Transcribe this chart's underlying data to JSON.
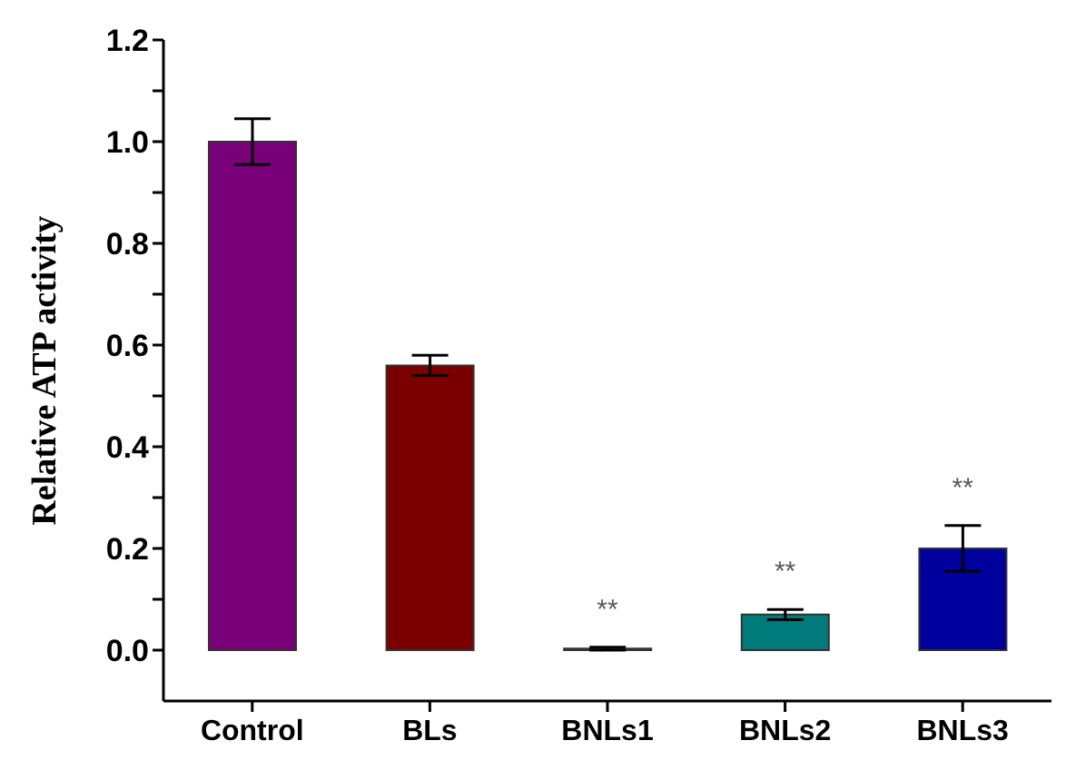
{
  "chart_data": {
    "type": "bar",
    "ylabel": "Relative ATP activity",
    "categories": [
      "Control",
      "BLs",
      "BNLs1",
      "BNLs2",
      "BNLs3"
    ],
    "values": [
      1.0,
      0.56,
      0.003,
      0.07,
      0.2
    ],
    "colors": [
      "#7a007a",
      "#7a0000",
      "#007a00",
      "#007a7a",
      "#00009e"
    ],
    "errors": [
      0.045,
      0.02,
      0.003,
      0.01,
      0.045
    ],
    "ylim": [
      -0.1,
      1.2
    ],
    "yticks": [
      {
        "value": 0,
        "label": "0.0"
      },
      {
        "value": 0.1,
        "label": null
      },
      0.2,
      {
        "value": 0.3,
        "label": null
      },
      0.4,
      {
        "value": 0.5,
        "label": null
      },
      0.6,
      {
        "value": 0.7,
        "label": null
      },
      0.8,
      {
        "value": 0.9,
        "label": null
      },
      {
        "value": 1,
        "label": "1.0"
      },
      {
        "value": 1.1,
        "label": null
      },
      1.2
    ],
    "annotations": [
      "**",
      "**",
      "**"
    ],
    "grid": false
  }
}
